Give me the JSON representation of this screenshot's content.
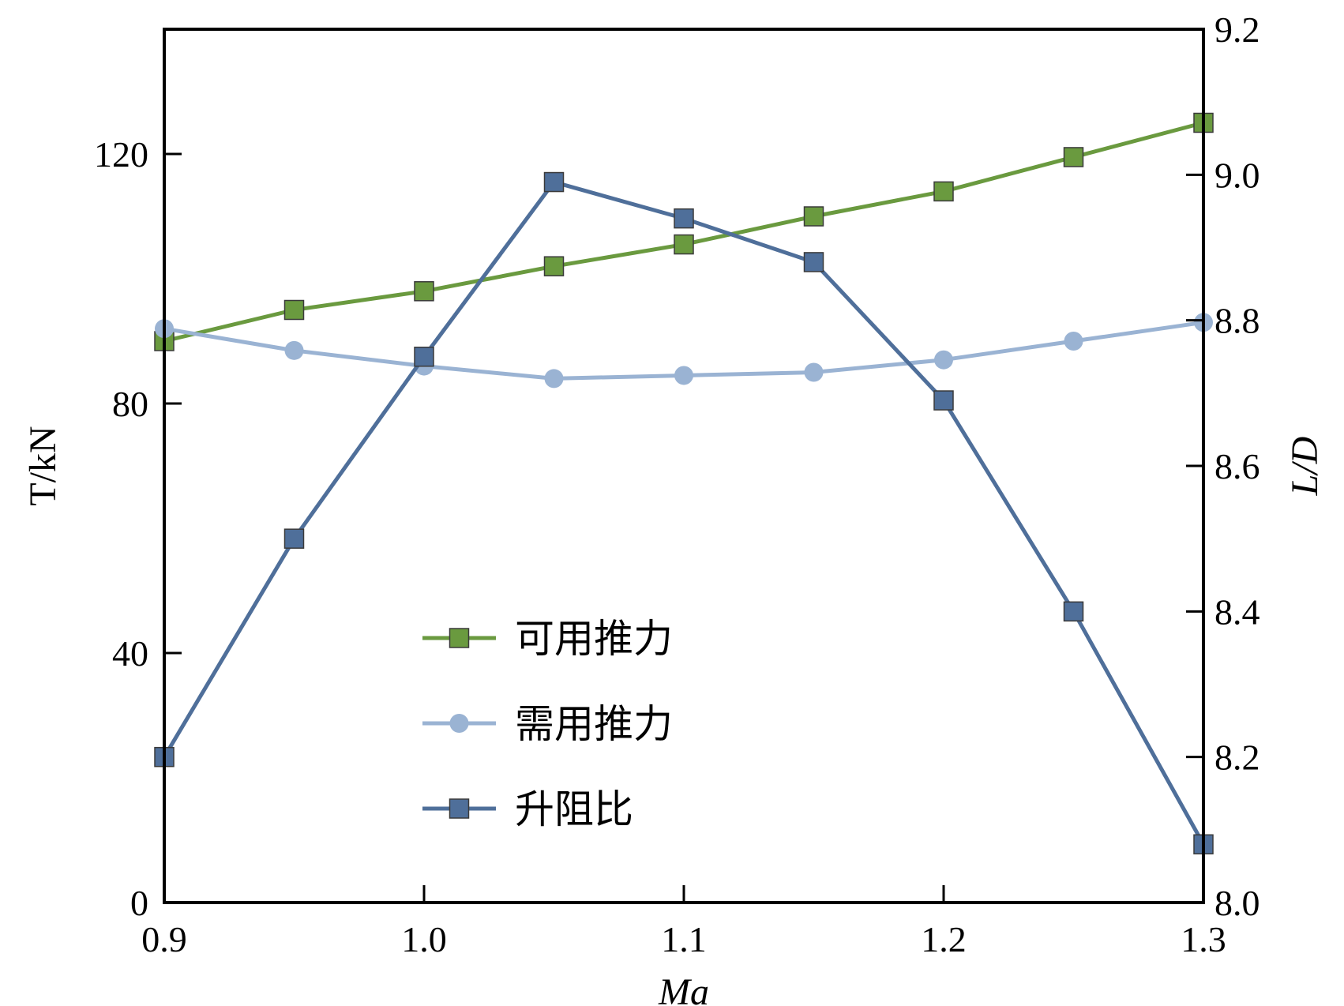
{
  "chart_data": {
    "type": "line",
    "x": [
      0.9,
      0.95,
      1.0,
      1.05,
      1.1,
      1.15,
      1.2,
      1.25,
      1.3
    ],
    "xlim": [
      0.9,
      1.3
    ],
    "xticks": [
      "0.9",
      "1.0",
      "1.1",
      "1.2",
      "1.3"
    ],
    "xtick_values": [
      0.9,
      1.0,
      1.1,
      1.2,
      1.3
    ],
    "xlabel": "Ma",
    "ylabel_left": "T/kN",
    "ylim_left": [
      0,
      140
    ],
    "yticks_left": [
      "0",
      "40",
      "80",
      "120"
    ],
    "ytick_values_left": [
      0,
      40,
      80,
      120
    ],
    "ylabel_right": "L/D",
    "ylim_right": [
      8.0,
      9.2
    ],
    "yticks_right": [
      "8.0",
      "8.2",
      "8.4",
      "8.6",
      "8.8",
      "9.0",
      "9.2"
    ],
    "ytick_values_right": [
      8.0,
      8.2,
      8.4,
      8.6,
      8.8,
      9.0,
      9.2
    ],
    "grid": false,
    "legend_position": "center-left",
    "series": [
      {
        "name": "可用推力",
        "axis": "left",
        "marker": "square",
        "color": "#6a9a3f",
        "values": [
          90,
          95,
          98,
          102,
          105.5,
          110,
          114,
          119.5,
          125
        ]
      },
      {
        "name": "需用推力",
        "axis": "left",
        "marker": "circle",
        "color": "#9ab3d3",
        "values": [
          92,
          88.5,
          86,
          84,
          84.5,
          85,
          87,
          90,
          93
        ]
      },
      {
        "name": "升阻比",
        "axis": "right",
        "marker": "square",
        "color": "#4f6f9a",
        "values": [
          8.2,
          8.5,
          8.75,
          8.99,
          8.94,
          8.88,
          8.69,
          8.4,
          8.08
        ]
      }
    ]
  }
}
